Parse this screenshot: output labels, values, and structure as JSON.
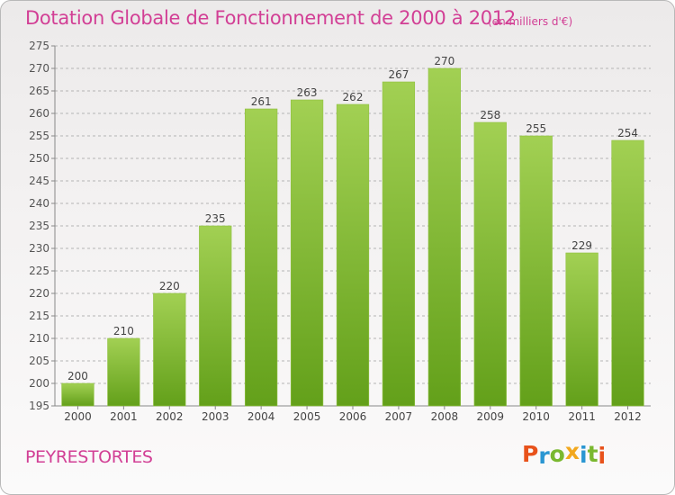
{
  "title": "Dotation Globale de Fonctionnement de 2000 à 2012",
  "subtitle": "(en milliers d'€)",
  "commune": "PEYRESTORTES",
  "brand": {
    "text": "Proxiti",
    "letters": [
      {
        "char": "P",
        "color": "#e8521b"
      },
      {
        "char": "r",
        "color": "#2a96d2"
      },
      {
        "char": "o",
        "color": "#7ab82f"
      },
      {
        "char": "x",
        "color": "#f2a81e"
      },
      {
        "char": "i",
        "color": "#2a96d2"
      },
      {
        "char": "t",
        "color": "#7ab82f"
      },
      {
        "char": "i",
        "color": "#e8521b"
      }
    ]
  },
  "colors": {
    "accent": "#d23f95",
    "bar_light": "#a2d053",
    "bar_dark": "#63a01a",
    "grid": "#b4b4b4"
  },
  "chart_data": {
    "type": "bar",
    "categories": [
      "2000",
      "2001",
      "2002",
      "2003",
      "2004",
      "2005",
      "2006",
      "2007",
      "2008",
      "2009",
      "2010",
      "2011",
      "2012"
    ],
    "values": [
      200,
      210,
      220,
      235,
      261,
      263,
      262,
      267,
      270,
      258,
      255,
      229,
      254
    ],
    "data_labels": [
      "200",
      "210",
      "220",
      "235",
      "261",
      "263",
      "262",
      "267",
      "270",
      "258",
      "255",
      "229",
      "254"
    ],
    "yticks": [
      195,
      200,
      205,
      210,
      215,
      220,
      225,
      230,
      235,
      240,
      245,
      250,
      255,
      260,
      265,
      270,
      275
    ],
    "ylim": [
      195,
      275
    ],
    "grid": true,
    "grid_style": "dashed-horizontal",
    "legend": false
  }
}
